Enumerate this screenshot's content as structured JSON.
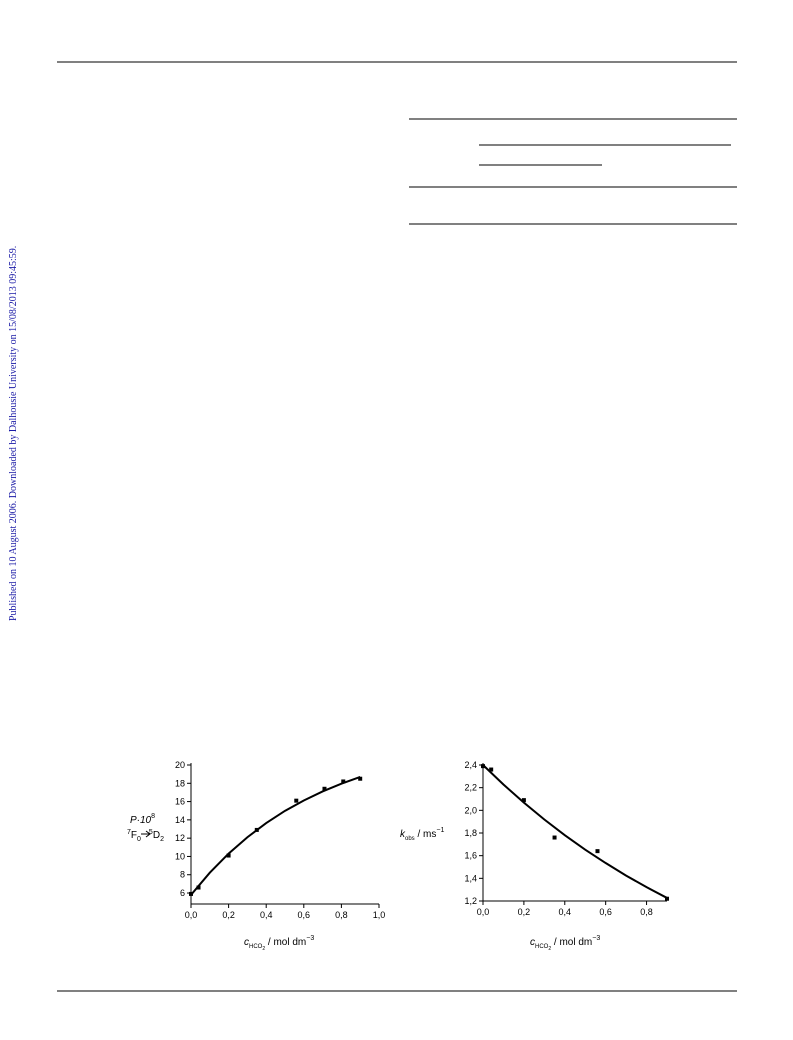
{
  "sidebar": "Published on 10 August 2006. Downloaded by Dalhousie University on 15/08/2013 09:45:59.",
  "chart_data": [
    {
      "type": "scatter",
      "ylabel": {
        "line1": "P·10",
        "line1_sup": "8",
        "pre_sup": "7",
        "f": "F",
        "f_sub": "0",
        "arrow_sup": "5",
        "d": "D",
        "d_sub": "2"
      },
      "xlabel": {
        "c": "c",
        "sub": "HCO",
        "sub2": "2",
        "unit": " / mol dm",
        "sup": "−3"
      },
      "xlim": [
        0,
        1.0
      ],
      "ylim": [
        4.8,
        20
      ],
      "xticks": [
        {
          "value": 0,
          "label": "0,0"
        },
        {
          "value": 0.2,
          "label": "0,2"
        },
        {
          "value": 0.4,
          "label": "0,4"
        },
        {
          "value": 0.6,
          "label": "0,6"
        },
        {
          "value": 0.8,
          "label": "0,8"
        },
        {
          "value": 1.0,
          "label": "1,0"
        }
      ],
      "yticks": [
        6,
        8,
        10,
        12,
        14,
        16,
        18,
        20
      ],
      "points": {
        "x": [
          0,
          0.04,
          0.2,
          0.35,
          0.56,
          0.71,
          0.81,
          0.9
        ],
        "y": [
          5.9,
          6.6,
          10.1,
          12.9,
          16.1,
          17.4,
          18.2,
          18.5
        ]
      },
      "fit": {
        "x": [
          0,
          0.1,
          0.2,
          0.3,
          0.4,
          0.5,
          0.6,
          0.7,
          0.8,
          0.9
        ],
        "y": [
          5.8,
          8.22,
          10.31,
          12.1,
          13.65,
          14.99,
          16.12,
          17.11,
          17.96,
          18.69
        ]
      }
    },
    {
      "type": "scatter",
      "ylabel": {
        "k": "k",
        "sub": "obs",
        "unit": " / ms",
        "sup": "−1"
      },
      "xlabel": {
        "c": "c",
        "sub": "HCO",
        "sub2": "2",
        "unit": " / mol  dm",
        "sup": "−3"
      },
      "xlim": [
        0,
        0.9
      ],
      "ylim": [
        1.2,
        2.4
      ],
      "xticks": [
        {
          "value": 0,
          "label": "0,0"
        },
        {
          "value": 0.2,
          "label": "0,2"
        },
        {
          "value": 0.4,
          "label": "0,4"
        },
        {
          "value": 0.6,
          "label": "0,6"
        },
        {
          "value": 0.8,
          "label": "0,8"
        }
      ],
      "yticks": [
        {
          "value": 1.2,
          "label": "1,2"
        },
        {
          "value": 1.4,
          "label": "1,4"
        },
        {
          "value": 1.6,
          "label": "1,6"
        },
        {
          "value": 1.8,
          "label": "1,8"
        },
        {
          "value": 2.0,
          "label": "2,0"
        },
        {
          "value": 2.2,
          "label": "2,2"
        },
        {
          "value": 2.4,
          "label": "2,4"
        }
      ],
      "points": {
        "x": [
          0,
          0.04,
          0.2,
          0.35,
          0.56,
          0.9
        ],
        "y": [
          2.39,
          2.36,
          2.09,
          1.76,
          1.64,
          1.22
        ]
      },
      "fit": {
        "x": [
          0,
          0.1,
          0.2,
          0.3,
          0.4,
          0.5,
          0.6,
          0.7,
          0.8,
          0.9
        ],
        "y": [
          2.4,
          2.228,
          2.068,
          1.919,
          1.781,
          1.653,
          1.535,
          1.424,
          1.322,
          1.227
        ]
      }
    }
  ]
}
